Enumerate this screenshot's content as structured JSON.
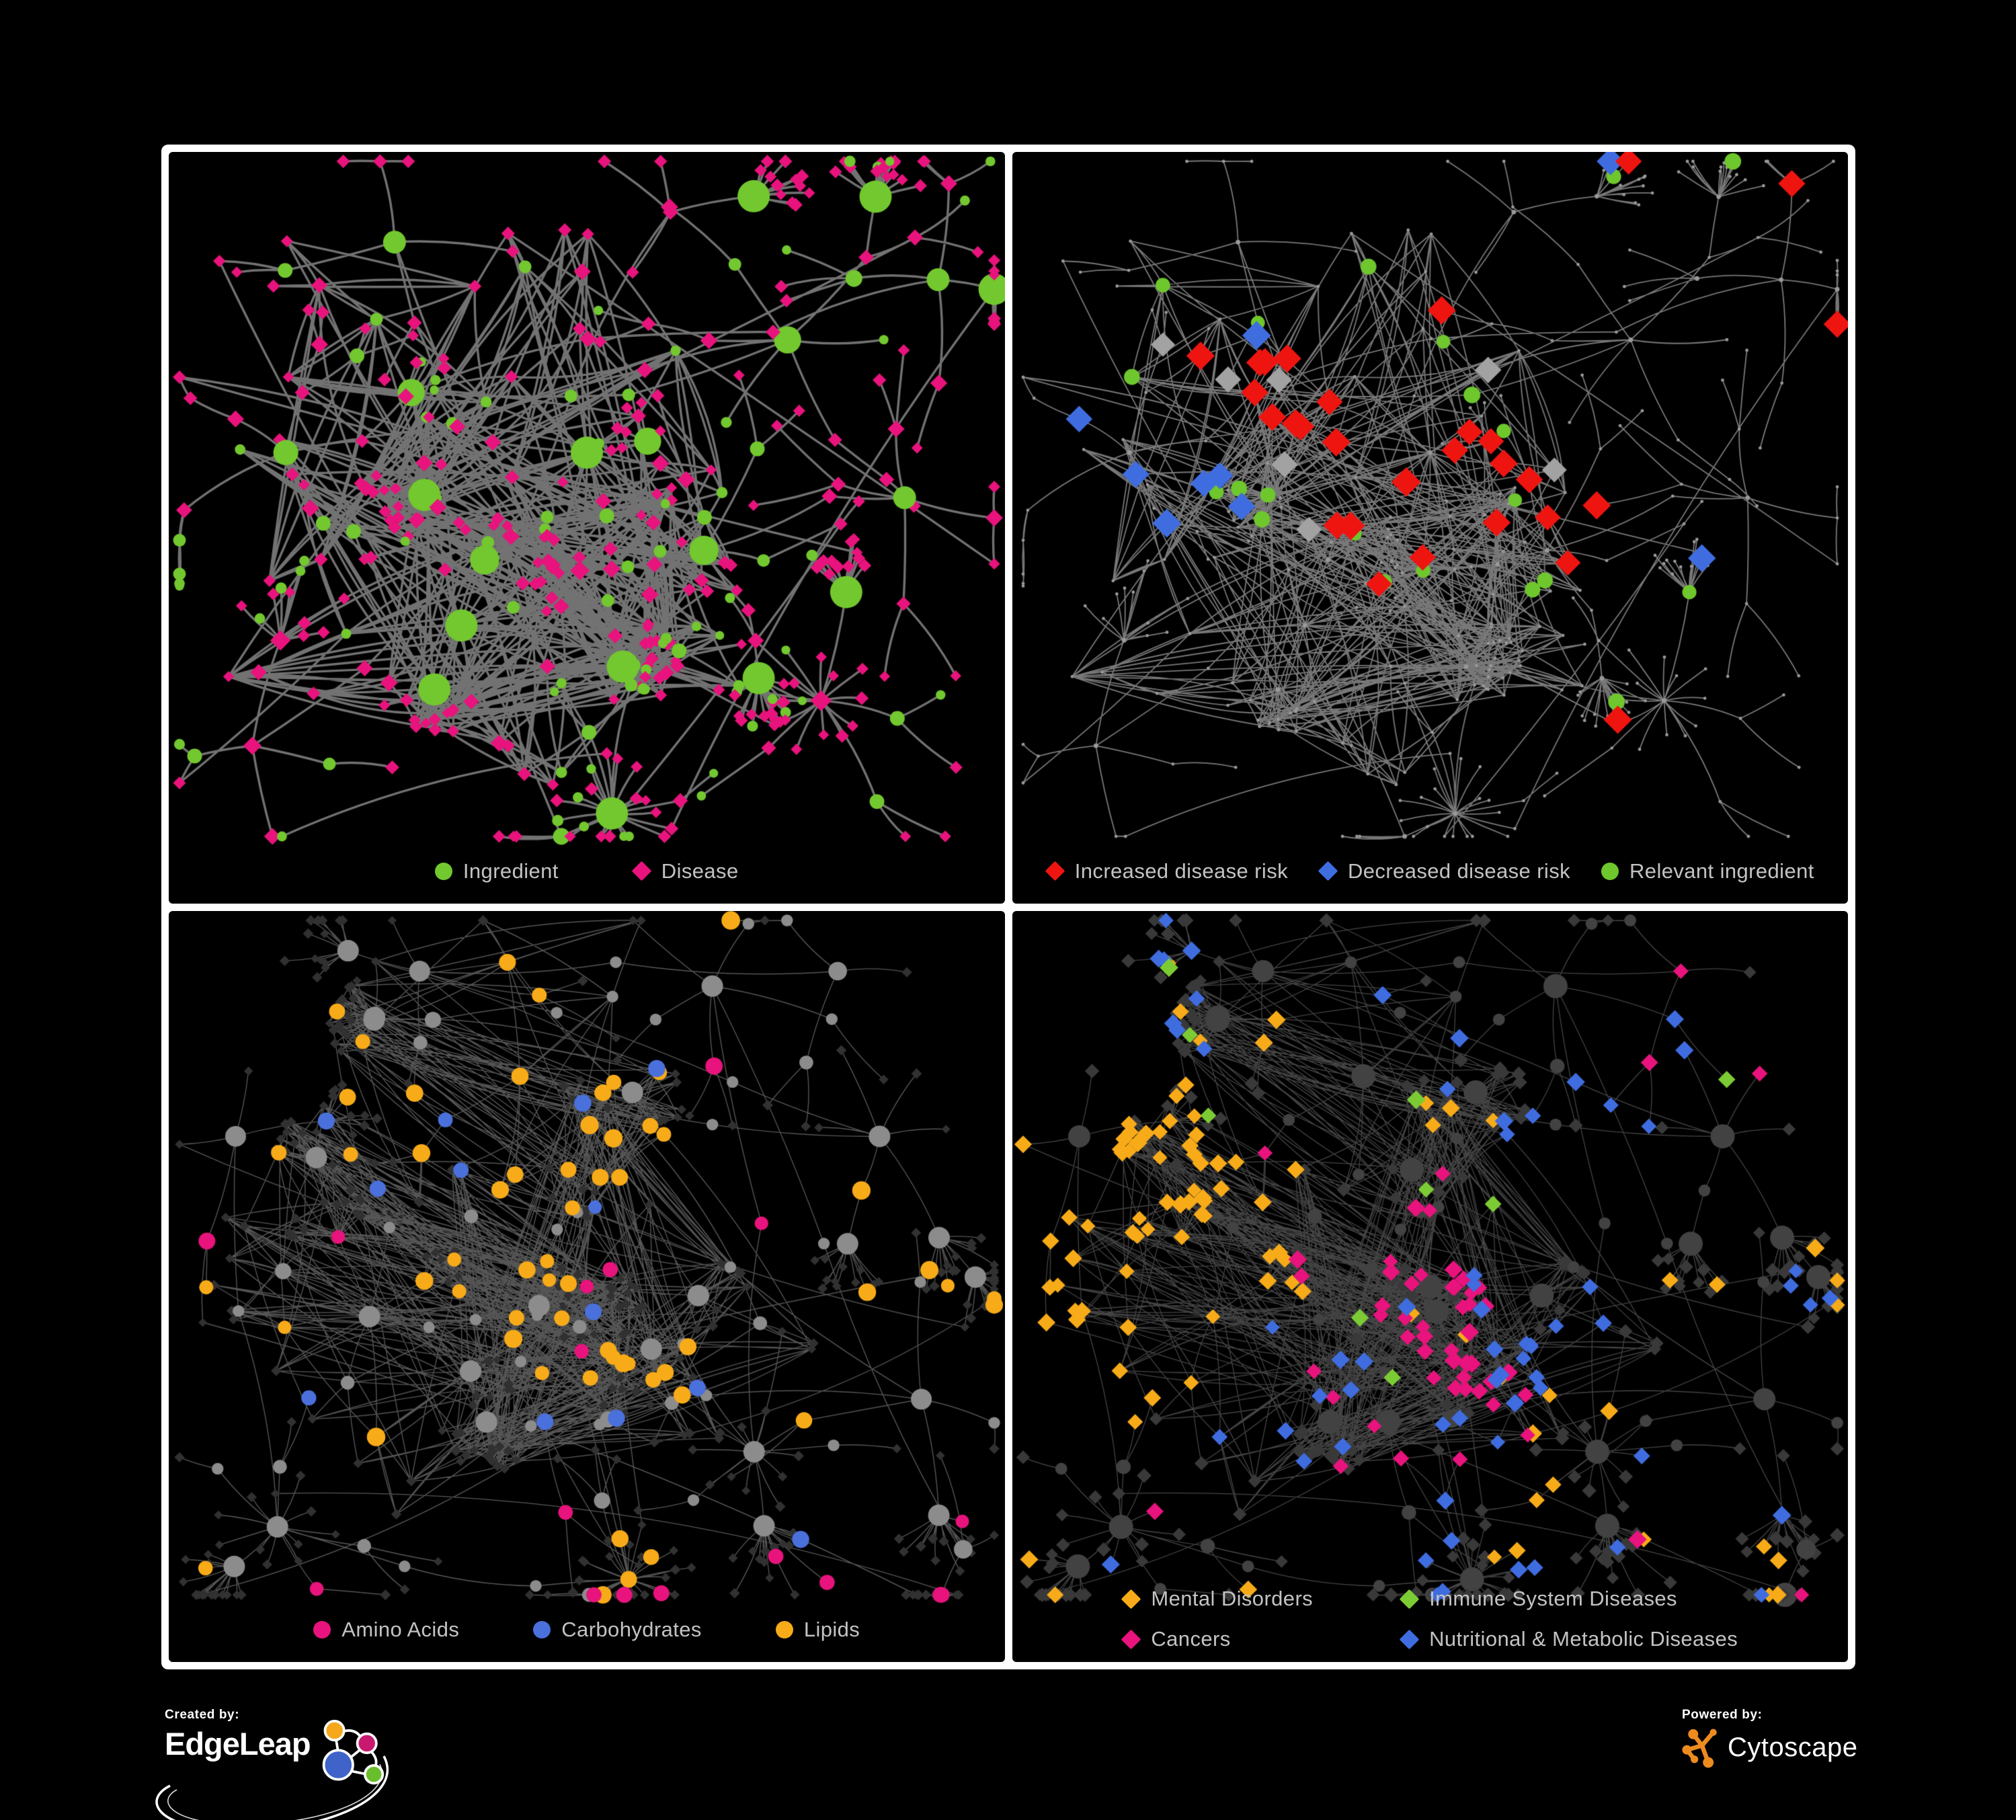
{
  "page": {
    "background": "#000000",
    "frame_color": "#ffffff"
  },
  "panels": [
    {
      "name": "ingredient-disease-network",
      "legend": [
        {
          "label": "Ingredient",
          "shape": "circle",
          "color": "#72c82e"
        },
        {
          "label": "Disease",
          "shape": "diamond",
          "color": "#e8137d"
        }
      ]
    },
    {
      "name": "disease-risk-network",
      "legend": [
        {
          "label": "Increased disease risk",
          "shape": "diamond",
          "color": "#ee1511"
        },
        {
          "label": "Decreased disease risk",
          "shape": "diamond",
          "color": "#3f6de0"
        },
        {
          "label": "Relevant ingredient",
          "shape": "circle",
          "color": "#6ec72d"
        }
      ]
    },
    {
      "name": "metabolite-class-network",
      "legend": [
        {
          "label": "Amino Acids",
          "shape": "circle",
          "color": "#e8137d"
        },
        {
          "label": "Carbohydrates",
          "shape": "circle",
          "color": "#4a70dc"
        },
        {
          "label": "Lipids",
          "shape": "circle",
          "color": "#f8ab18"
        }
      ]
    },
    {
      "name": "disease-class-network",
      "legend": [
        {
          "label": "Mental Disorders",
          "shape": "diamond",
          "color": "#f8ab18"
        },
        {
          "label": "Immune System Diseases",
          "shape": "diamond",
          "color": "#7ccb34"
        },
        {
          "label": "Cancers",
          "shape": "diamond",
          "color": "#e8137d"
        },
        {
          "label": "Nutritional & Metabolic Diseases",
          "shape": "diamond",
          "color": "#3f6de0"
        }
      ]
    }
  ],
  "footer": {
    "created_by_label": "Created by:",
    "created_by_brand": "EdgeLeap",
    "powered_by_label": "Powered by:",
    "powered_by_brand": "Cytoscape",
    "cytoscape_orange": "#ee8b1f",
    "edgeleap_colors": {
      "orange": "#f5a81c",
      "magenta": "#c9186f",
      "blue": "#3f63c8",
      "green": "#68bf2b"
    }
  },
  "network_render": {
    "edge_colors": {
      "p1": "rgba(120,120,120,0.95)",
      "p2": "rgba(150,150,150,0.8)",
      "p3": "rgba(170,170,170,0.5)",
      "p4": "rgba(150,150,150,0.45)"
    },
    "edge_widths": {
      "p1": 3.4,
      "p2": 1.8,
      "p3": 1.4,
      "p4": 1.3
    },
    "base_colors": {
      "p2_dot": "#999999",
      "p2_gray_diamond": "#a2a2a2",
      "p3_leaf": "#313131",
      "p3_node": "#8c8c8c",
      "p4_leaf": "#393939",
      "p4_node": "#424242"
    },
    "seeds": {
      "topoA": 1337,
      "topoB": 4242,
      "styleP1": 901,
      "styleP2": 902,
      "styleP3": 903,
      "styleP4": 904
    },
    "highlight_counts": {
      "p2_red": 29,
      "p2_blue": 9,
      "p2_gray": 7,
      "p2_green": 22,
      "p3_orange": 60,
      "p3_blue": 13,
      "p3_pink": 17,
      "p4_orange": 92,
      "p4_pink": 55,
      "p4_blue": 64,
      "p4_green": 9
    }
  }
}
